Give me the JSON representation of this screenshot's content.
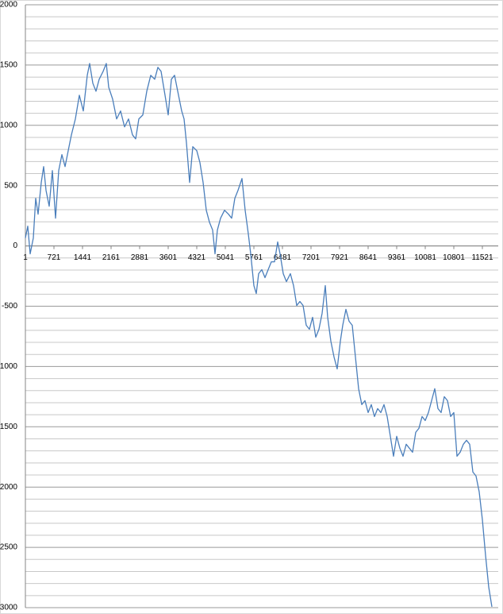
{
  "chart_data": {
    "type": "line",
    "color": "#4a7ebb",
    "grid": true,
    "x": [
      1,
      61,
      121,
      201,
      261,
      321,
      401,
      461,
      521,
      601,
      681,
      761,
      841,
      921,
      1001,
      1081,
      1161,
      1261,
      1361,
      1461,
      1561,
      1621,
      1701,
      1781,
      1861,
      1961,
      2041,
      2101,
      2201,
      2301,
      2401,
      2501,
      2601,
      2701,
      2781,
      2861,
      2961,
      3061,
      3161,
      3261,
      3341,
      3421,
      3521,
      3601,
      3681,
      3761,
      3861,
      3941,
      4001,
      4061,
      4141,
      4221,
      4321,
      4401,
      4481,
      4561,
      4641,
      4721,
      4781,
      4841,
      4921,
      5021,
      5121,
      5201,
      5281,
      5361,
      5461,
      5541,
      5621,
      5681,
      5761,
      5821,
      5881,
      5961,
      6041,
      6121,
      6201,
      6281,
      6361,
      6421,
      6501,
      6581,
      6681,
      6761,
      6841,
      6921,
      7001,
      7081,
      7161,
      7241,
      7321,
      7401,
      7481,
      7561,
      7621,
      7701,
      7781,
      7861,
      7941,
      8001,
      8081,
      8161,
      8241,
      8321,
      8401,
      8481,
      8561,
      8641,
      8721,
      8801,
      8881,
      8961,
      9041,
      9121,
      9201,
      9281,
      9361,
      9441,
      9521,
      9601,
      9681,
      9761,
      9841,
      9921,
      10001,
      10081,
      10161,
      10241,
      10321,
      10401,
      10481,
      10561,
      10641,
      10721,
      10801,
      10881,
      10961,
      11041,
      11121,
      11201,
      11281,
      11361,
      11441,
      11521,
      11601,
      11681,
      11761
    ],
    "values": [
      66,
      164,
      -66,
      66,
      395,
      263,
      526,
      658,
      461,
      329,
      625,
      230,
      625,
      757,
      658,
      790,
      921,
      1053,
      1250,
      1119,
      1415,
      1513,
      1349,
      1283,
      1382,
      1448,
      1513,
      1316,
      1217,
      1053,
      1119,
      987,
      1053,
      921,
      888,
      1053,
      1086,
      1283,
      1415,
      1382,
      1481,
      1448,
      1250,
      1086,
      1382,
      1415,
      1250,
      1119,
      1053,
      855,
      526,
      823,
      790,
      691,
      526,
      296,
      197,
      132,
      -66,
      132,
      230,
      296,
      263,
      230,
      395,
      461,
      559,
      296,
      99,
      -66,
      -329,
      -395,
      -230,
      -197,
      -263,
      -197,
      -132,
      -132,
      33,
      -66,
      -230,
      -296,
      -230,
      -329,
      -494,
      -461,
      -494,
      -658,
      -691,
      -592,
      -757,
      -691,
      -559,
      -329,
      -592,
      -790,
      -921,
      -1020,
      -790,
      -658,
      -526,
      -625,
      -658,
      -921,
      -1184,
      -1316,
      -1283,
      -1382,
      -1316,
      -1415,
      -1349,
      -1382,
      -1316,
      -1415,
      -1579,
      -1744,
      -1579,
      -1678,
      -1744,
      -1645,
      -1678,
      -1711,
      -1546,
      -1513,
      -1415,
      -1448,
      -1382,
      -1283,
      -1184,
      -1349,
      -1382,
      -1250,
      -1283,
      -1415,
      -1382,
      -1744,
      -1711,
      -1645,
      -1612,
      -1645,
      -1875,
      -1908,
      -2040,
      -2270,
      -2566,
      -2829,
      -2993
    ],
    "xlim": [
      1,
      11921
    ],
    "xticks": [
      1,
      721,
      1441,
      2161,
      2881,
      3601,
      4321,
      5041,
      5761,
      6481,
      7201,
      7921,
      8641,
      9361,
      10081,
      10801,
      11521
    ],
    "ylim": [
      -3000,
      2000
    ],
    "yticks": [
      -3000,
      -2500,
      -2000,
      -1500,
      -1000,
      -500,
      0,
      500,
      1000,
      1500,
      2000
    ],
    "yminorticks": [
      -2900,
      -2800,
      -2700,
      -2600,
      -2400,
      -2300,
      -2200,
      -2100,
      -1900,
      -1800,
      -1700,
      -1600,
      -1400,
      -1300,
      -1200,
      -1100,
      -900,
      -800,
      -700,
      -600,
      -400,
      -300,
      -200,
      -100,
      100,
      200,
      300,
      400,
      600,
      700,
      800,
      900,
      1100,
      1200,
      1300,
      1400,
      1600,
      1700,
      1800,
      1900
    ]
  }
}
